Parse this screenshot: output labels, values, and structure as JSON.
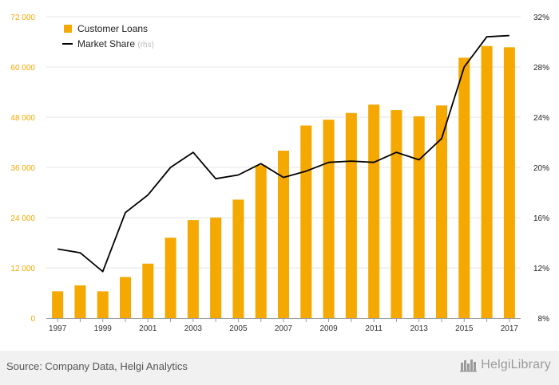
{
  "chart_data": {
    "type": "bar",
    "title": "",
    "categories": [
      "1997",
      "1998",
      "1999",
      "2000",
      "2001",
      "2002",
      "2003",
      "2004",
      "2005",
      "2006",
      "2007",
      "2008",
      "2009",
      "2010",
      "2011",
      "2012",
      "2013",
      "2014",
      "2015",
      "2016",
      "2017"
    ],
    "x_tick_labels": [
      "1997",
      "1999",
      "2001",
      "2003",
      "2005",
      "2007",
      "2009",
      "2011",
      "2013",
      "2015",
      "2017"
    ],
    "series": [
      {
        "name": "Customer Loans",
        "type": "bar",
        "axis": "left",
        "color": "#f5a800",
        "values": [
          6400,
          7800,
          6400,
          9800,
          13000,
          19200,
          23400,
          24000,
          28300,
          36500,
          40000,
          46000,
          47400,
          49000,
          51000,
          49700,
          48200,
          50800,
          62200,
          65000,
          64700
        ]
      },
      {
        "name": "Market Share",
        "type": "line",
        "axis": "right",
        "color": "#000000",
        "values": [
          13.5,
          13.2,
          11.7,
          16.4,
          17.8,
          20.0,
          21.2,
          19.1,
          19.4,
          20.3,
          19.2,
          19.7,
          20.4,
          20.5,
          20.4,
          21.2,
          20.6,
          22.3,
          28.0,
          30.4,
          30.5
        ]
      }
    ],
    "legend": {
      "position": "top-left",
      "items": [
        {
          "label": "Customer Loans",
          "suffix": ""
        },
        {
          "label": "Market Share",
          "suffix": "(rhs)"
        }
      ]
    },
    "left_axis": {
      "ylim": [
        0,
        72000
      ],
      "ticks": [
        "0",
        "12 000",
        "24 000",
        "36 000",
        "48 000",
        "60 000",
        "72 000"
      ],
      "color": "#f5a800"
    },
    "right_axis": {
      "ylim": [
        8,
        32
      ],
      "ticks": [
        "8%",
        "12%",
        "16%",
        "20%",
        "24%",
        "28%",
        "32%"
      ],
      "color": "#000000"
    },
    "grid": true
  },
  "footer": {
    "source": "Source: Company Data, Helgi Analytics",
    "brand": "HelgiLibrary"
  }
}
